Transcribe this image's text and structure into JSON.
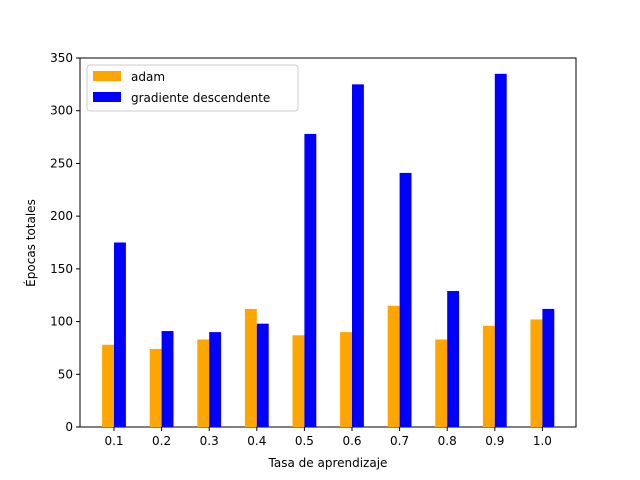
{
  "chart_data": {
    "type": "bar",
    "title": "",
    "xlabel": "Tasa de aprendizaje",
    "ylabel": "Épocas totales",
    "categories": [
      "0.1",
      "0.2",
      "0.3",
      "0.4",
      "0.5",
      "0.6",
      "0.7",
      "0.8",
      "0.9",
      "1.0"
    ],
    "series": [
      {
        "name": "adam",
        "color": "#ffa500",
        "values": [
          78,
          74,
          83,
          112,
          87,
          90,
          115,
          83,
          96,
          102
        ]
      },
      {
        "name": "gradiente descendente",
        "color": "#0000ff",
        "values": [
          175,
          91,
          90,
          98,
          278,
          325,
          241,
          129,
          335,
          112
        ]
      }
    ],
    "ylim": [
      0,
      350
    ],
    "yticks": [
      "0",
      "50",
      "100",
      "150",
      "200",
      "250",
      "300",
      "350"
    ],
    "grid": false,
    "legend": "top-left"
  }
}
